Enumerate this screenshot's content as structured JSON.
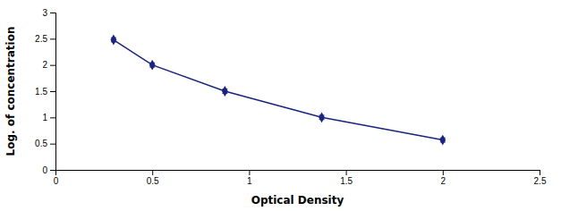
{
  "chart_data": {
    "type": "line",
    "xlabel": "Optical Density",
    "ylabel": "Log. of concentration",
    "x": [
      0.3,
      0.5,
      0.875,
      1.375,
      2.0
    ],
    "values": [
      2.48,
      2.0,
      1.5,
      1.0,
      0.57
    ],
    "yerr": [
      0.04,
      0.04,
      0.04,
      0.04,
      0.04
    ],
    "color": "#1a237e",
    "marker": "diamond",
    "line_style": "solid",
    "xlim": [
      0,
      2.5
    ],
    "ylim": [
      0,
      3
    ],
    "xticks": [
      0,
      0.5,
      1.0,
      1.5,
      2.0,
      2.5
    ],
    "yticks": [
      0,
      0.5,
      1.0,
      1.5,
      2.0,
      2.5,
      3.0
    ]
  }
}
